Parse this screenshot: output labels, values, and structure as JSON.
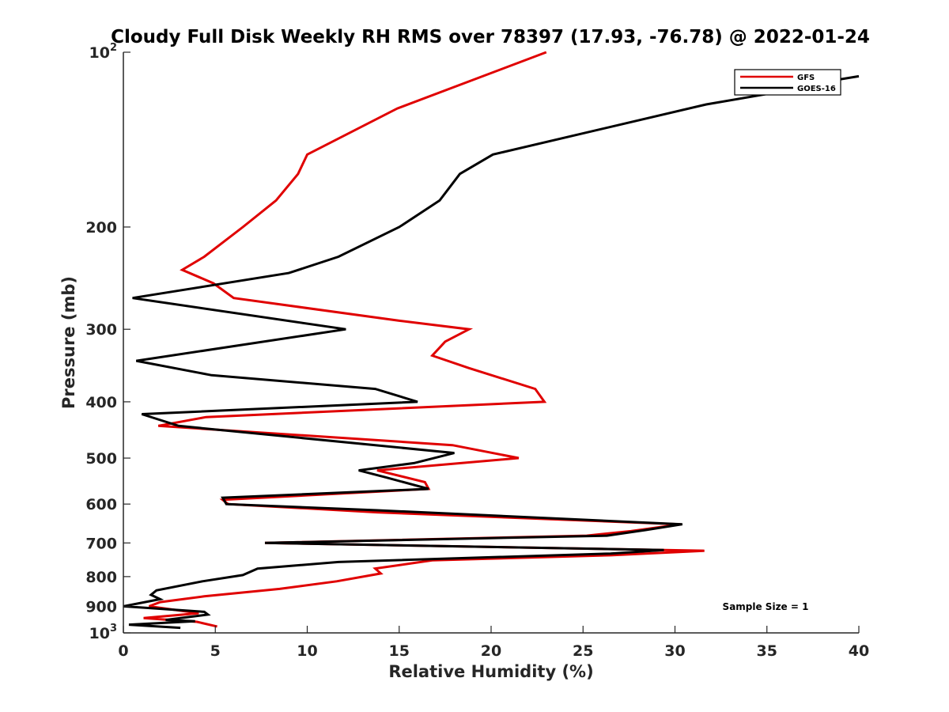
{
  "chart_data": {
    "type": "line",
    "title": "Cloudy Full Disk Weekly RH RMS over 78397 (17.93, -76.78) @ 2022-01-24",
    "xlabel": "Relative Humidity (%)",
    "ylabel": "Pressure (mb)",
    "xlim": [
      0,
      40
    ],
    "ylim": [
      100,
      1000
    ],
    "yscale": "log",
    "y_reversed": true,
    "grid": false,
    "legend_placement": "top-right",
    "x_ticks": [
      "0",
      "5",
      "10",
      "15",
      "20",
      "25",
      "30",
      "35",
      "40"
    ],
    "y_ticks": [
      {
        "value": 100,
        "base": "10",
        "exp": "2"
      },
      {
        "value": 200,
        "label": "200"
      },
      {
        "value": 300,
        "label": "300"
      },
      {
        "value": 400,
        "label": "400"
      },
      {
        "value": 500,
        "label": "500"
      },
      {
        "value": 600,
        "label": "600"
      },
      {
        "value": 700,
        "label": "700"
      },
      {
        "value": 800,
        "label": "800"
      },
      {
        "value": 900,
        "label": "900"
      },
      {
        "value": 1000,
        "base": "10",
        "exp": "3"
      }
    ],
    "annotation": "Sample Size = 1",
    "series": [
      {
        "name": "GFS",
        "color": "#e00000",
        "points": [
          [
            23.0,
            100
          ],
          [
            14.9,
            125
          ],
          [
            10.0,
            150
          ],
          [
            9.5,
            162
          ],
          [
            8.3,
            180
          ],
          [
            6.5,
            200
          ],
          [
            4.4,
            225
          ],
          [
            3.2,
            237
          ],
          [
            4.9,
            250
          ],
          [
            6.0,
            265
          ],
          [
            15.0,
            290
          ],
          [
            18.8,
            300
          ],
          [
            17.5,
            315
          ],
          [
            16.8,
            333
          ],
          [
            18.8,
            350
          ],
          [
            22.4,
            380
          ],
          [
            22.9,
            400
          ],
          [
            4.5,
            425
          ],
          [
            1.9,
            440
          ],
          [
            17.9,
            475
          ],
          [
            21.5,
            500
          ],
          [
            13.8,
            525
          ],
          [
            16.4,
            550
          ],
          [
            16.6,
            565
          ],
          [
            5.4,
            590
          ],
          [
            5.7,
            600
          ],
          [
            13.8,
            620
          ],
          [
            30.3,
            650
          ],
          [
            27.6,
            668
          ],
          [
            25.2,
            680
          ],
          [
            7.7,
            700
          ],
          [
            31.6,
            722
          ],
          [
            26.5,
            735
          ],
          [
            16.8,
            750
          ],
          [
            13.7,
            775
          ],
          [
            14.0,
            790
          ],
          [
            11.6,
            815
          ],
          [
            8.5,
            840
          ],
          [
            4.4,
            865
          ],
          [
            2.0,
            885
          ],
          [
            1.4,
            900
          ],
          [
            4.1,
            925
          ],
          [
            1.1,
            943
          ],
          [
            4.0,
            957
          ],
          [
            5.1,
            975
          ]
        ]
      },
      {
        "name": "GOES-16",
        "color": "#000000",
        "points": [
          [
            40.0,
            110
          ],
          [
            37.0,
            114
          ],
          [
            35.0,
            118
          ],
          [
            31.7,
            123
          ],
          [
            20.1,
            150
          ],
          [
            18.3,
            162
          ],
          [
            17.2,
            180
          ],
          [
            15.0,
            200
          ],
          [
            11.7,
            225
          ],
          [
            9.0,
            240
          ],
          [
            0.5,
            265
          ],
          [
            12.1,
            300
          ],
          [
            0.7,
            340
          ],
          [
            4.8,
            360
          ],
          [
            13.7,
            380
          ],
          [
            16.0,
            400
          ],
          [
            1.0,
            420
          ],
          [
            3.0,
            440
          ],
          [
            18.0,
            490
          ],
          [
            15.8,
            510
          ],
          [
            12.8,
            525
          ],
          [
            14.3,
            540
          ],
          [
            16.6,
            565
          ],
          [
            5.4,
            585
          ],
          [
            5.6,
            600
          ],
          [
            13.8,
            615
          ],
          [
            30.4,
            650
          ],
          [
            28.4,
            665
          ],
          [
            26.3,
            680
          ],
          [
            7.7,
            700
          ],
          [
            29.4,
            720
          ],
          [
            26.5,
            730
          ],
          [
            11.7,
            755
          ],
          [
            7.3,
            775
          ],
          [
            6.5,
            795
          ],
          [
            4.3,
            815
          ],
          [
            1.8,
            845
          ],
          [
            1.5,
            860
          ],
          [
            2.0,
            875
          ],
          [
            0.0,
            900
          ],
          [
            4.4,
            920
          ],
          [
            4.6,
            930
          ],
          [
            2.3,
            950
          ],
          [
            3.9,
            955
          ],
          [
            0.3,
            968
          ],
          [
            3.1,
            980
          ]
        ]
      }
    ]
  }
}
